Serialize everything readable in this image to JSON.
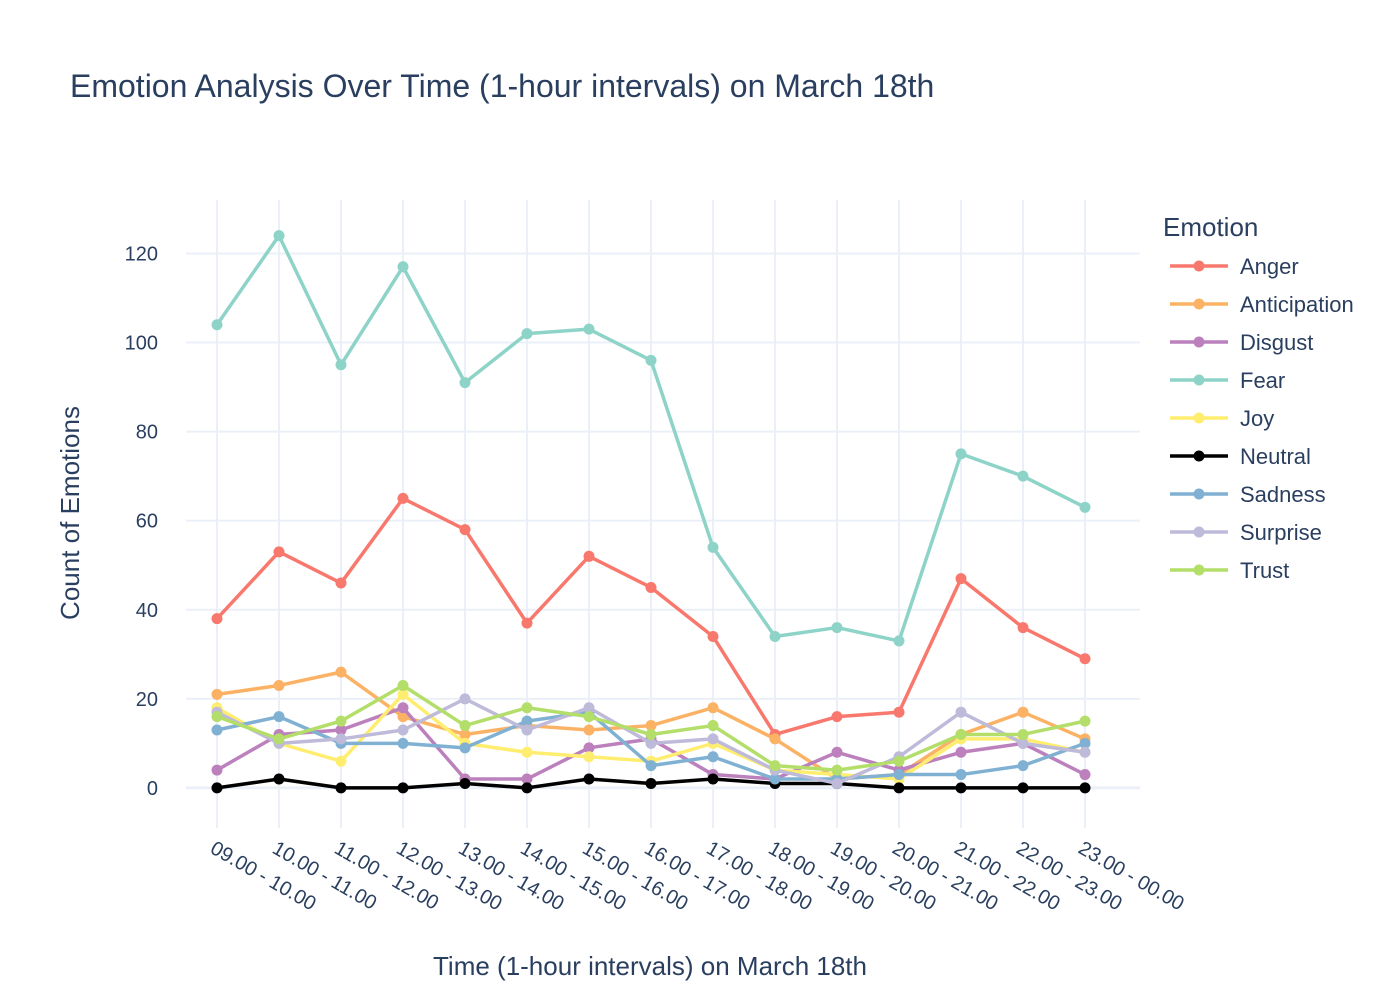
{
  "chart_data": {
    "type": "line",
    "title": "Emotion Analysis Over Time (1-hour intervals) on March 18th",
    "xlabel": "Time (1-hour intervals) on March 18th",
    "ylabel": "Count of Emotions",
    "legend_title": "Emotion",
    "legend_position": "right",
    "grid": true,
    "ylim": [
      -9,
      132
    ],
    "yticks": [
      0,
      20,
      40,
      60,
      80,
      100,
      120
    ],
    "categories": [
      "09.00 - 10.00",
      "10.00 - 11.00",
      "11.00 - 12.00",
      "12.00 - 13.00",
      "13.00 - 14.00",
      "14.00 - 15.00",
      "15.00 - 16.00",
      "16.00 - 17.00",
      "17.00 - 18.00",
      "18.00 - 19.00",
      "19.00 - 20.00",
      "20.00 - 21.00",
      "21.00 - 22.00",
      "22.00 - 23.00",
      "23.00 - 00.00"
    ],
    "series": [
      {
        "name": "Anger",
        "color": "#f8786d",
        "values": [
          38,
          53,
          46,
          65,
          58,
          37,
          52,
          45,
          34,
          12,
          16,
          17,
          47,
          36,
          29
        ]
      },
      {
        "name": "Anticipation",
        "color": "#fbb264",
        "values": [
          21,
          23,
          26,
          16,
          12,
          14,
          13,
          14,
          18,
          11,
          2,
          3,
          12,
          17,
          11
        ]
      },
      {
        "name": "Disgust",
        "color": "#bc80bd",
        "values": [
          4,
          12,
          13,
          18,
          2,
          2,
          9,
          11,
          3,
          2,
          8,
          4,
          8,
          10,
          3
        ]
      },
      {
        "name": "Fear",
        "color": "#8dd3c7",
        "values": [
          104,
          124,
          95,
          117,
          91,
          102,
          103,
          96,
          54,
          34,
          36,
          33,
          75,
          70,
          63
        ]
      },
      {
        "name": "Joy",
        "color": "#ffed6f",
        "values": [
          18,
          10,
          6,
          21,
          10,
          8,
          7,
          6,
          10,
          4,
          3,
          2,
          11,
          11,
          8
        ]
      },
      {
        "name": "Neutral",
        "color": "#000000",
        "values": [
          0,
          2,
          0,
          0,
          1,
          0,
          2,
          1,
          2,
          1,
          1,
          0,
          0,
          0,
          0
        ]
      },
      {
        "name": "Sadness",
        "color": "#80b1d3",
        "values": [
          13,
          16,
          10,
          10,
          9,
          15,
          17,
          5,
          7,
          2,
          2,
          3,
          3,
          5,
          10
        ]
      },
      {
        "name": "Surprise",
        "color": "#bebada",
        "values": [
          17,
          10,
          11,
          13,
          20,
          13,
          18,
          10,
          11,
          4,
          1,
          7,
          17,
          10,
          8
        ]
      },
      {
        "name": "Trust",
        "color": "#b3de69",
        "values": [
          16,
          11,
          15,
          23,
          14,
          18,
          16,
          12,
          14,
          5,
          4,
          6,
          12,
          12,
          15
        ]
      }
    ]
  }
}
